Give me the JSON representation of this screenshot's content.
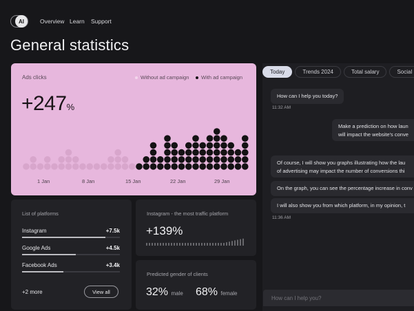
{
  "header": {
    "ai_label": "AI",
    "nav": [
      "Overview",
      "Learn",
      "Support"
    ],
    "title": "General statistics"
  },
  "ads": {
    "title": "Ads clicks",
    "legend_without": "Without ad campaign",
    "legend_with": "With ad campaign",
    "value": "+247",
    "unit": "%",
    "colors": {
      "without": "#d8a6cc",
      "with": "#141214"
    }
  },
  "chart_data": {
    "type": "scatter",
    "title": "Ads clicks",
    "x_ticks": [
      "1 Jan",
      "8 Jan",
      "15 Jan",
      "22 Jan",
      "29 Jan"
    ],
    "series": [
      {
        "name": "Without ad campaign",
        "values": [
          1,
          2,
          1,
          2,
          1,
          2,
          3,
          2,
          1,
          1,
          1,
          1,
          2,
          3,
          2,
          1
        ]
      },
      {
        "name": "With ad campaign",
        "values": [
          1,
          2,
          4,
          2,
          5,
          4,
          3,
          4,
          5,
          4,
          5,
          6,
          5,
          4,
          3,
          5
        ]
      }
    ]
  },
  "platforms": {
    "title": "List of platforms",
    "items": [
      {
        "name": "Instagram",
        "value": "+7.5k",
        "progress": 0.85
      },
      {
        "name": "Google Ads",
        "value": "+4.5k",
        "progress": 0.55
      },
      {
        "name": "Facebook Ads",
        "value": "+3.4k",
        "progress": 0.42
      }
    ],
    "more": "+2 more",
    "view_all": "View all"
  },
  "instagram": {
    "title": "Instagram - the most traffic platform",
    "value": "+139%"
  },
  "gender": {
    "title": "Predicted gender of clients",
    "male_value": "32%",
    "male_label": "male",
    "female_value": "68%",
    "female_label": "female"
  },
  "chat": {
    "tabs": [
      "Today",
      "Trends 2024",
      "Total salary",
      "Social netw"
    ],
    "messages": [
      {
        "text": "How can I help you today?"
      },
      {
        "text": "Make a prediction on how laun",
        "text2": "will impact the website's conve"
      },
      {
        "text": "Of course, I will show you graphs illustrating how the lau",
        "text2": "of advertising may impact the number of conversions thi"
      },
      {
        "text": "On the graph, you can see the percentage increase in conv"
      },
      {
        "text": "I will also show you from which platform, in my opinion, t"
      }
    ],
    "time1": "11:32 AM",
    "time2": "11:36 AM",
    "input_placeholder": "How can I help you?"
  }
}
